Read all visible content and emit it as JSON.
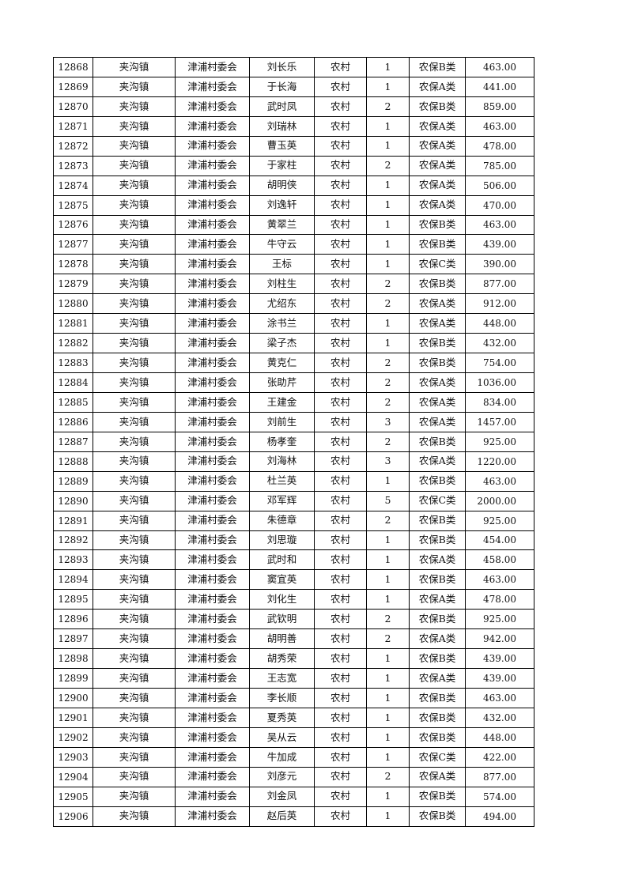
{
  "table": {
    "rows": [
      [
        "12868",
        "夹沟镇",
        "津浦村委会",
        "刘长乐",
        "农村",
        "1",
        "农保B类",
        "463.00"
      ],
      [
        "12869",
        "夹沟镇",
        "津浦村委会",
        "于长海",
        "农村",
        "1",
        "农保A类",
        "441.00"
      ],
      [
        "12870",
        "夹沟镇",
        "津浦村委会",
        "武时凤",
        "农村",
        "2",
        "农保B类",
        "859.00"
      ],
      [
        "12871",
        "夹沟镇",
        "津浦村委会",
        "刘瑞林",
        "农村",
        "1",
        "农保A类",
        "463.00"
      ],
      [
        "12872",
        "夹沟镇",
        "津浦村委会",
        "曹玉英",
        "农村",
        "1",
        "农保A类",
        "478.00"
      ],
      [
        "12873",
        "夹沟镇",
        "津浦村委会",
        "于家柱",
        "农村",
        "2",
        "农保A类",
        "785.00"
      ],
      [
        "12874",
        "夹沟镇",
        "津浦村委会",
        "胡明侠",
        "农村",
        "1",
        "农保A类",
        "506.00"
      ],
      [
        "12875",
        "夹沟镇",
        "津浦村委会",
        "刘逸轩",
        "农村",
        "1",
        "农保A类",
        "470.00"
      ],
      [
        "12876",
        "夹沟镇",
        "津浦村委会",
        "黄翠兰",
        "农村",
        "1",
        "农保B类",
        "463.00"
      ],
      [
        "12877",
        "夹沟镇",
        "津浦村委会",
        "牛守云",
        "农村",
        "1",
        "农保B类",
        "439.00"
      ],
      [
        "12878",
        "夹沟镇",
        "津浦村委会",
        "王标",
        "农村",
        "1",
        "农保C类",
        "390.00"
      ],
      [
        "12879",
        "夹沟镇",
        "津浦村委会",
        "刘柱生",
        "农村",
        "2",
        "农保B类",
        "877.00"
      ],
      [
        "12880",
        "夹沟镇",
        "津浦村委会",
        "尤绍东",
        "农村",
        "2",
        "农保A类",
        "912.00"
      ],
      [
        "12881",
        "夹沟镇",
        "津浦村委会",
        "涂书兰",
        "农村",
        "1",
        "农保A类",
        "448.00"
      ],
      [
        "12882",
        "夹沟镇",
        "津浦村委会",
        "梁子杰",
        "农村",
        "1",
        "农保B类",
        "432.00"
      ],
      [
        "12883",
        "夹沟镇",
        "津浦村委会",
        "黄克仁",
        "农村",
        "2",
        "农保B类",
        "754.00"
      ],
      [
        "12884",
        "夹沟镇",
        "津浦村委会",
        "张助芹",
        "农村",
        "2",
        "农保A类",
        "1036.00"
      ],
      [
        "12885",
        "夹沟镇",
        "津浦村委会",
        "王建金",
        "农村",
        "2",
        "农保A类",
        "834.00"
      ],
      [
        "12886",
        "夹沟镇",
        "津浦村委会",
        "刘前生",
        "农村",
        "3",
        "农保A类",
        "1457.00"
      ],
      [
        "12887",
        "夹沟镇",
        "津浦村委会",
        "杨孝奎",
        "农村",
        "2",
        "农保B类",
        "925.00"
      ],
      [
        "12888",
        "夹沟镇",
        "津浦村委会",
        "刘海林",
        "农村",
        "3",
        "农保A类",
        "1220.00"
      ],
      [
        "12889",
        "夹沟镇",
        "津浦村委会",
        "杜兰英",
        "农村",
        "1",
        "农保B类",
        "463.00"
      ],
      [
        "12890",
        "夹沟镇",
        "津浦村委会",
        "邓军辉",
        "农村",
        "5",
        "农保C类",
        "2000.00"
      ],
      [
        "12891",
        "夹沟镇",
        "津浦村委会",
        "朱德章",
        "农村",
        "2",
        "农保B类",
        "925.00"
      ],
      [
        "12892",
        "夹沟镇",
        "津浦村委会",
        "刘思璇",
        "农村",
        "1",
        "农保B类",
        "454.00"
      ],
      [
        "12893",
        "夹沟镇",
        "津浦村委会",
        "武时和",
        "农村",
        "1",
        "农保A类",
        "458.00"
      ],
      [
        "12894",
        "夹沟镇",
        "津浦村委会",
        "窦宜英",
        "农村",
        "1",
        "农保B类",
        "463.00"
      ],
      [
        "12895",
        "夹沟镇",
        "津浦村委会",
        "刘化生",
        "农村",
        "1",
        "农保A类",
        "478.00"
      ],
      [
        "12896",
        "夹沟镇",
        "津浦村委会",
        "武钦明",
        "农村",
        "2",
        "农保B类",
        "925.00"
      ],
      [
        "12897",
        "夹沟镇",
        "津浦村委会",
        "胡明善",
        "农村",
        "2",
        "农保A类",
        "942.00"
      ],
      [
        "12898",
        "夹沟镇",
        "津浦村委会",
        "胡秀荣",
        "农村",
        "1",
        "农保B类",
        "439.00"
      ],
      [
        "12899",
        "夹沟镇",
        "津浦村委会",
        "王志宽",
        "农村",
        "1",
        "农保A类",
        "439.00"
      ],
      [
        "12900",
        "夹沟镇",
        "津浦村委会",
        "李长顺",
        "农村",
        "1",
        "农保B类",
        "463.00"
      ],
      [
        "12901",
        "夹沟镇",
        "津浦村委会",
        "夏秀英",
        "农村",
        "1",
        "农保B类",
        "432.00"
      ],
      [
        "12902",
        "夹沟镇",
        "津浦村委会",
        "吴从云",
        "农村",
        "1",
        "农保B类",
        "448.00"
      ],
      [
        "12903",
        "夹沟镇",
        "津浦村委会",
        "牛加成",
        "农村",
        "1",
        "农保C类",
        "422.00"
      ],
      [
        "12904",
        "夹沟镇",
        "津浦村委会",
        "刘彦元",
        "农村",
        "2",
        "农保A类",
        "877.00"
      ],
      [
        "12905",
        "夹沟镇",
        "津浦村委会",
        "刘金凤",
        "农村",
        "1",
        "农保B类",
        "574.00"
      ],
      [
        "12906",
        "夹沟镇",
        "津浦村委会",
        "赵后英",
        "农村",
        "1",
        "农保B类",
        "494.00"
      ]
    ]
  }
}
